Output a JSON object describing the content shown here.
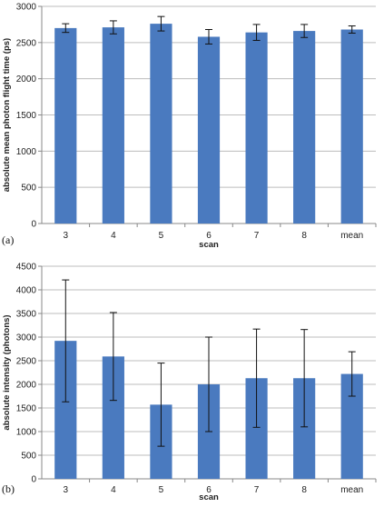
{
  "chart_data": [
    {
      "panel_label": "(a)",
      "type": "bar",
      "xlabel": "scan",
      "ylabel": "absolute mean photon flight time (ps)",
      "ylim": [
        0,
        3000
      ],
      "yticks": [
        0,
        500,
        1000,
        1500,
        2000,
        2500,
        3000
      ],
      "categories": [
        "3",
        "4",
        "5",
        "6",
        "7",
        "8",
        "mean"
      ],
      "values": [
        2700,
        2710,
        2760,
        2580,
        2640,
        2660,
        2680
      ],
      "error_bars": [
        60,
        90,
        100,
        100,
        110,
        90,
        50
      ],
      "grid": true,
      "bar_color": "#4a7abf"
    },
    {
      "panel_label": "(b)",
      "type": "bar",
      "xlabel": "scan",
      "ylabel": "absolute intensity (photons)",
      "ylim": [
        0,
        4500
      ],
      "yticks": [
        0,
        500,
        1000,
        1500,
        2000,
        2500,
        3000,
        3500,
        4000,
        4500
      ],
      "categories": [
        "3",
        "4",
        "5",
        "6",
        "7",
        "8",
        "mean"
      ],
      "values": [
        2920,
        2590,
        1570,
        2000,
        2130,
        2130,
        2220
      ],
      "error_bars": [
        1290,
        930,
        880,
        1000,
        1040,
        1030,
        470
      ],
      "grid": true,
      "bar_color": "#4a7abf"
    }
  ]
}
